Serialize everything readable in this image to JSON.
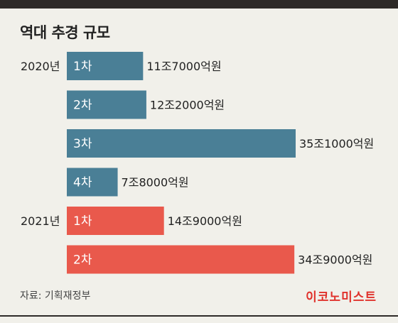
{
  "title": "역대 추경 규모",
  "source": "자료: 기획재정부",
  "brand": "이코노미스트",
  "colors": {
    "2020년": "#4a7f96",
    "2021년": "#e9594c"
  },
  "chart_data": {
    "type": "bar",
    "orientation": "horizontal",
    "unit": "억원",
    "xlim": [
      0,
      351000
    ],
    "groups": [
      "2020년",
      "2021년"
    ],
    "categories": [
      "1차",
      "2차",
      "3차",
      "4차",
      "1차",
      "2차"
    ],
    "category_groups": [
      "2020년",
      "2020년",
      "2020년",
      "2020년",
      "2021년",
      "2021년"
    ],
    "values": [
      117000,
      122000,
      351000,
      78000,
      149000,
      349000
    ],
    "value_labels": [
      "11조7000억원",
      "12조2000억원",
      "35조1000억원",
      "7조8000억원",
      "14조9000억원",
      "34조9000억원"
    ]
  }
}
